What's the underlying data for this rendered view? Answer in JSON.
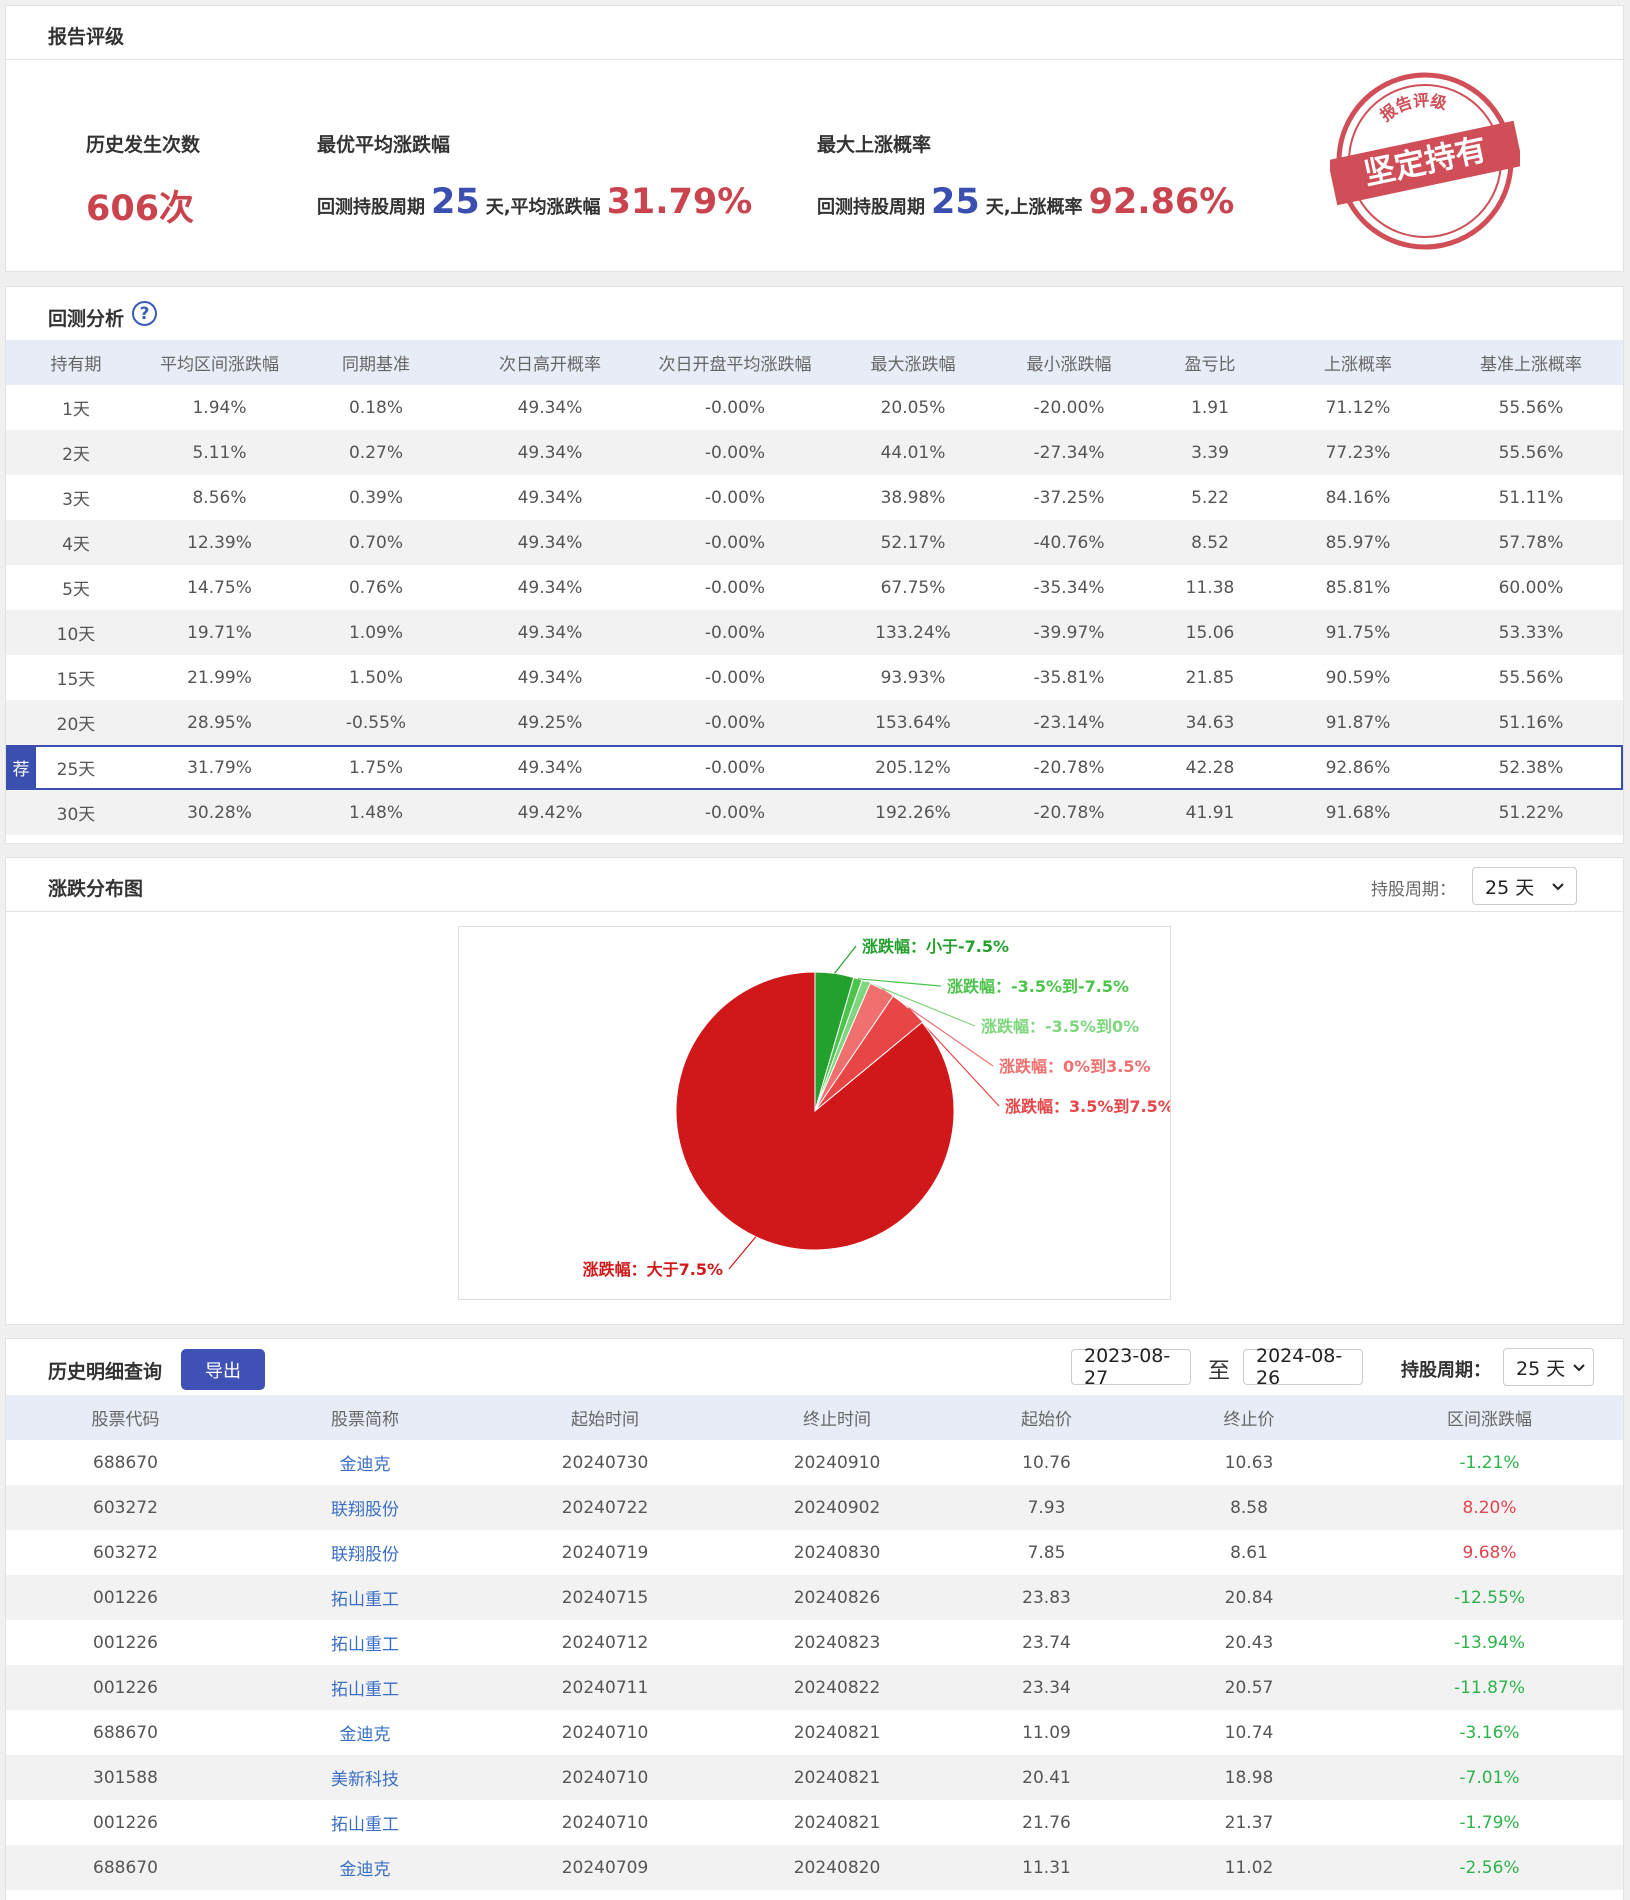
{
  "rating": {
    "title": "报告评级",
    "count_label": "历史发生次数",
    "count": "606次",
    "best_avg": {
      "title": "最优平均涨跌幅",
      "period_label": "回测持股周期",
      "period": "25",
      "metric_label": "天,平均涨跌幅",
      "value": "31.79%"
    },
    "max_up": {
      "title": "最大上涨概率",
      "period_label": "回测持股周期",
      "period": "25",
      "metric_label": "天,上涨概率",
      "value": "92.86%"
    },
    "stamp": {
      "ring": "报告评级",
      "main": "坚定持有"
    }
  },
  "backtest": {
    "title": "回测分析",
    "help_icon": "?",
    "badge": "荐",
    "recommended_row": 8,
    "columns": [
      "持有期",
      "平均区间涨跌幅",
      "同期基准",
      "次日高开概率",
      "次日开盘平均涨跌幅",
      "最大涨跌幅",
      "最小涨跌幅",
      "盈亏比",
      "上涨概率",
      "基准上涨概率"
    ],
    "rows": [
      [
        "1天",
        "1.94%",
        "0.18%",
        "49.34%",
        "-0.00%",
        "20.05%",
        "-20.00%",
        "1.91",
        "71.12%",
        "55.56%"
      ],
      [
        "2天",
        "5.11%",
        "0.27%",
        "49.34%",
        "-0.00%",
        "44.01%",
        "-27.34%",
        "3.39",
        "77.23%",
        "55.56%"
      ],
      [
        "3天",
        "8.56%",
        "0.39%",
        "49.34%",
        "-0.00%",
        "38.98%",
        "-37.25%",
        "5.22",
        "84.16%",
        "51.11%"
      ],
      [
        "4天",
        "12.39%",
        "0.70%",
        "49.34%",
        "-0.00%",
        "52.17%",
        "-40.76%",
        "8.52",
        "85.97%",
        "57.78%"
      ],
      [
        "5天",
        "14.75%",
        "0.76%",
        "49.34%",
        "-0.00%",
        "67.75%",
        "-35.34%",
        "11.38",
        "85.81%",
        "60.00%"
      ],
      [
        "10天",
        "19.71%",
        "1.09%",
        "49.34%",
        "-0.00%",
        "133.24%",
        "-39.97%",
        "15.06",
        "91.75%",
        "53.33%"
      ],
      [
        "15天",
        "21.99%",
        "1.50%",
        "49.34%",
        "-0.00%",
        "93.93%",
        "-35.81%",
        "21.85",
        "90.59%",
        "55.56%"
      ],
      [
        "20天",
        "28.95%",
        "-0.55%",
        "49.25%",
        "-0.00%",
        "153.64%",
        "-23.14%",
        "34.63",
        "91.87%",
        "51.16%"
      ],
      [
        "25天",
        "31.79%",
        "1.75%",
        "49.34%",
        "-0.00%",
        "205.12%",
        "-20.78%",
        "42.28",
        "92.86%",
        "52.38%"
      ],
      [
        "30天",
        "30.28%",
        "1.48%",
        "49.42%",
        "-0.00%",
        "192.26%",
        "-20.78%",
        "41.91",
        "91.68%",
        "51.22%"
      ]
    ]
  },
  "distribution": {
    "title": "涨跌分布图",
    "period_label": "持股周期：",
    "period": "25 天"
  },
  "chart_data": {
    "type": "pie",
    "categories": [
      "涨跌幅：小于-7.5%",
      "涨跌幅：-3.5%到-7.5%",
      "涨跌幅：-3.5%到0%",
      "涨跌幅：0%到3.5%",
      "涨跌幅：3.5%到7.5%",
      "涨跌幅：大于7.5%"
    ],
    "values": [
      4.5,
      1.0,
      1.0,
      3.0,
      4.5,
      86.0
    ],
    "colors": [
      "#23a02d",
      "#4cc44c",
      "#7ed67e",
      "#f07070",
      "#e84646",
      "#d0181b"
    ]
  },
  "history": {
    "title": "历史明细查询",
    "export": "导出",
    "start_date": "2023-08-27",
    "to": "至",
    "end_date": "2024-08-26",
    "period_label": "持股周期：",
    "period": "25 天",
    "columns": [
      "股票代码",
      "股票简称",
      "起始时间",
      "终止时间",
      "起始价",
      "终止价",
      "区间涨跌幅"
    ],
    "rows": [
      [
        "688670",
        "金迪克",
        "20240730",
        "20240910",
        "10.76",
        "10.63",
        "-1.21%"
      ],
      [
        "603272",
        "联翔股份",
        "20240722",
        "20240902",
        "7.93",
        "8.58",
        "8.20%"
      ],
      [
        "603272",
        "联翔股份",
        "20240719",
        "20240830",
        "7.85",
        "8.61",
        "9.68%"
      ],
      [
        "001226",
        "拓山重工",
        "20240715",
        "20240826",
        "23.83",
        "20.84",
        "-12.55%"
      ],
      [
        "001226",
        "拓山重工",
        "20240712",
        "20240823",
        "23.74",
        "20.43",
        "-13.94%"
      ],
      [
        "001226",
        "拓山重工",
        "20240711",
        "20240822",
        "23.34",
        "20.57",
        "-11.87%"
      ],
      [
        "688670",
        "金迪克",
        "20240710",
        "20240821",
        "11.09",
        "10.74",
        "-3.16%"
      ],
      [
        "301588",
        "美新科技",
        "20240710",
        "20240821",
        "20.41",
        "18.98",
        "-7.01%"
      ],
      [
        "001226",
        "拓山重工",
        "20240710",
        "20240821",
        "21.76",
        "21.37",
        "-1.79%"
      ],
      [
        "688670",
        "金迪克",
        "20240709",
        "20240820",
        "11.31",
        "11.02",
        "-2.56%"
      ]
    ]
  }
}
